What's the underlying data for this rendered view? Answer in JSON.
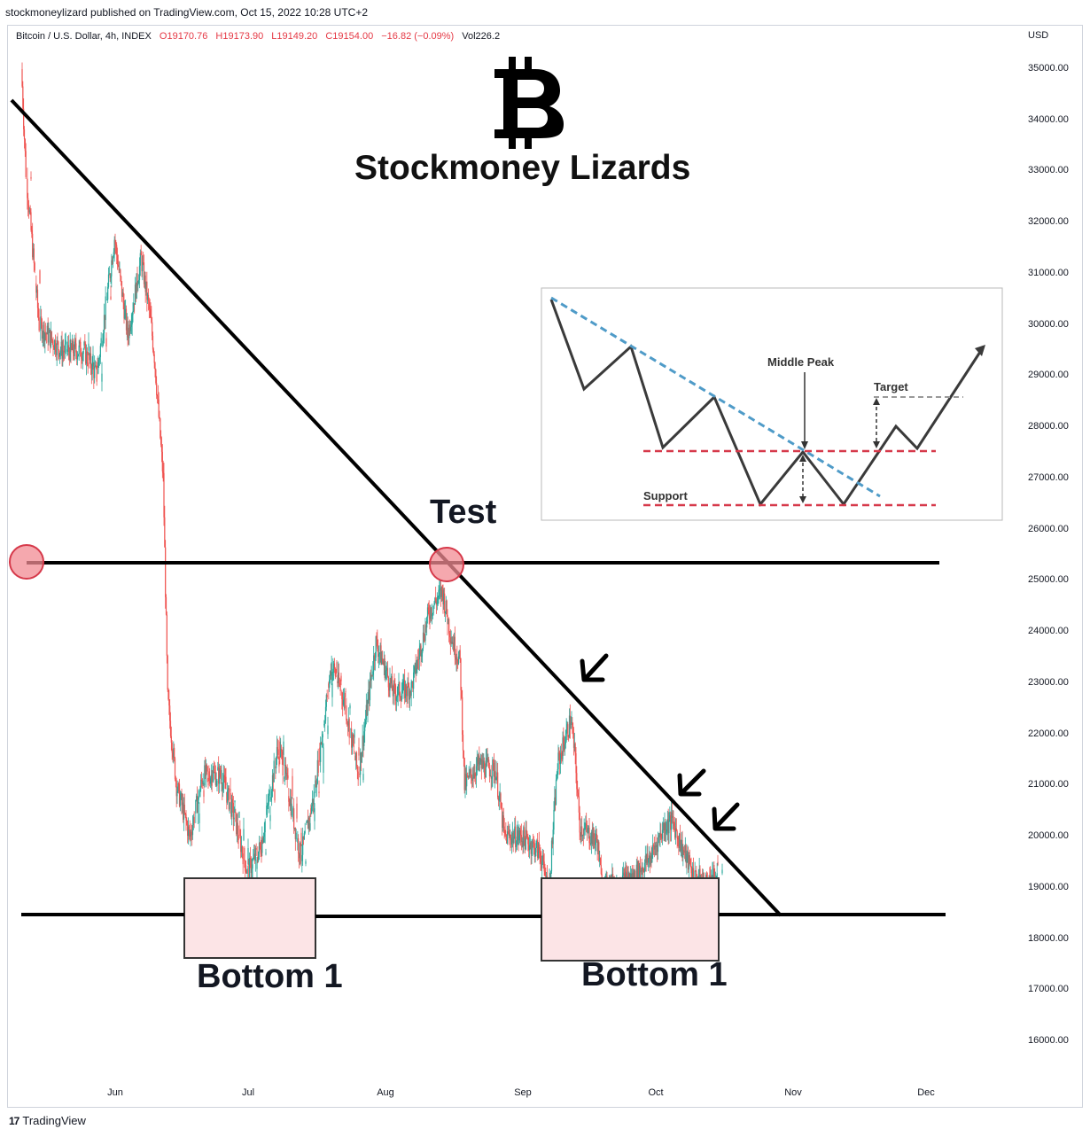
{
  "header": {
    "published_line": "stockmoneylizard published on TradingView.com, Oct 15, 2022 10:28 UTC+2"
  },
  "legend": {
    "symbol": "Bitcoin / U.S. Dollar, 4h, INDEX",
    "open": "O19170.76",
    "high": "H19173.90",
    "low": "L19149.20",
    "close": "C19154.00",
    "change": "−16.82 (−0.09%)",
    "volume": "Vol226.2"
  },
  "currency_label": "USD",
  "branding": {
    "title": "Stockmoney Lizards",
    "logo_icon": "bitcoin-icon"
  },
  "annotations": {
    "test_label": "Test",
    "bottom_left_label": "Bottom 1",
    "bottom_right_label": "Bottom 1"
  },
  "inset": {
    "middle_peak_label": "Middle Peak",
    "target_label": "Target",
    "support_label": "Support"
  },
  "footer": {
    "logo_glyph": "17",
    "brand": "TradingView"
  },
  "colors": {
    "up_candle": "#26a69a",
    "down_candle": "#ef5350",
    "trendline": "#000000",
    "box_fill": "#fce4e6",
    "marker": "#f28b93",
    "inset_dashed_red": "#d6394a",
    "inset_dashed_blue": "#4f9bc8"
  },
  "chart_data": {
    "type": "line",
    "title": "Bitcoin / U.S. Dollar, 4h, INDEX",
    "xlabel": "",
    "ylabel": "USD",
    "ylim": [
      15500,
      35800
    ],
    "xlim": [
      "2022-05-11",
      "2022-12-08"
    ],
    "y_ticks": [
      "16000.00",
      "17000.00",
      "18000.00",
      "19000.00",
      "20000.00",
      "21000.00",
      "22000.00",
      "23000.00",
      "24000.00",
      "25000.00",
      "26000.00",
      "27000.00",
      "28000.00",
      "29000.00",
      "30000.00",
      "31000.00",
      "32000.00",
      "33000.00",
      "34000.00",
      "35000.00"
    ],
    "x_ticks": [
      {
        "label": "Jun",
        "date": "2022-06-01"
      },
      {
        "label": "Jul",
        "date": "2022-07-01"
      },
      {
        "label": "Aug",
        "date": "2022-08-01"
      },
      {
        "label": "Sep",
        "date": "2022-09-01"
      },
      {
        "label": "Oct",
        "date": "2022-10-01"
      },
      {
        "label": "Nov",
        "date": "2022-11-01"
      },
      {
        "label": "Dec",
        "date": "2022-12-01"
      }
    ],
    "series": [
      {
        "x": [
          "2022-05-11",
          "2022-05-12",
          "2022-05-15",
          "2022-05-20",
          "2022-05-25",
          "2022-05-28",
          "2022-06-01",
          "2022-06-04",
          "2022-06-07",
          "2022-06-09",
          "2022-06-10",
          "2022-06-12",
          "2022-06-13",
          "2022-06-15",
          "2022-06-18",
          "2022-06-21",
          "2022-06-25",
          "2022-06-28",
          "2022-07-01",
          "2022-07-04",
          "2022-07-08",
          "2022-07-10",
          "2022-07-13",
          "2022-07-16",
          "2022-07-20",
          "2022-07-23",
          "2022-07-26",
          "2022-07-30",
          "2022-08-03",
          "2022-08-07",
          "2022-08-11",
          "2022-08-14",
          "2022-08-16",
          "2022-08-18",
          "2022-08-19",
          "2022-08-22",
          "2022-08-26",
          "2022-08-28",
          "2022-09-01",
          "2022-09-05",
          "2022-09-07",
          "2022-09-09",
          "2022-09-12",
          "2022-09-13",
          "2022-09-14",
          "2022-09-18",
          "2022-09-19",
          "2022-09-22",
          "2022-09-26",
          "2022-09-30",
          "2022-10-03",
          "2022-10-05",
          "2022-10-07",
          "2022-10-10",
          "2022-10-13",
          "2022-10-14",
          "2022-10-15"
        ],
        "values": [
          35000,
          33000,
          30000,
          29500,
          29500,
          29000,
          31700,
          29800,
          31300,
          30200,
          29400,
          27000,
          22700,
          21000,
          20000,
          21200,
          21200,
          20400,
          19300,
          19800,
          21800,
          21000,
          19600,
          20800,
          23400,
          22600,
          21200,
          23800,
          22800,
          22900,
          24400,
          24800,
          23900,
          23400,
          21000,
          21400,
          21300,
          20000,
          20000,
          19700,
          18900,
          21400,
          22300,
          21500,
          20200,
          19900,
          19000,
          19100,
          19200,
          19600,
          20200,
          20300,
          19800,
          19200,
          19100,
          19300,
          19150
        ]
      }
    ],
    "annotations": {
      "trendline_descending": {
        "from": {
          "x": "2022-05-11",
          "y": 34400
        },
        "to": {
          "x": "2022-10-29",
          "y": 18450
        }
      },
      "horizontal_test_level": 25300,
      "horizontal_support_level": 18450,
      "test_point": {
        "x": "2022-08-13",
        "y": 25300
      },
      "early_marker": {
        "x": "2022-05-15",
        "y": 25300
      },
      "bottom_zones": [
        {
          "label": "Bottom 1",
          "x_from": "2022-06-16",
          "x_to": "2022-07-16",
          "y_from": 17600,
          "y_to": 19200
        },
        {
          "label": "Bottom 1",
          "x_from": "2022-09-05",
          "x_to": "2022-10-15",
          "y_from": 17550,
          "y_to": 19200
        }
      ],
      "arrows_at": [
        {
          "x": "2022-09-12",
          "y": 23000
        },
        {
          "x": "2022-10-05",
          "y": 20800
        },
        {
          "x": "2022-10-14",
          "y": 20000
        }
      ]
    }
  }
}
